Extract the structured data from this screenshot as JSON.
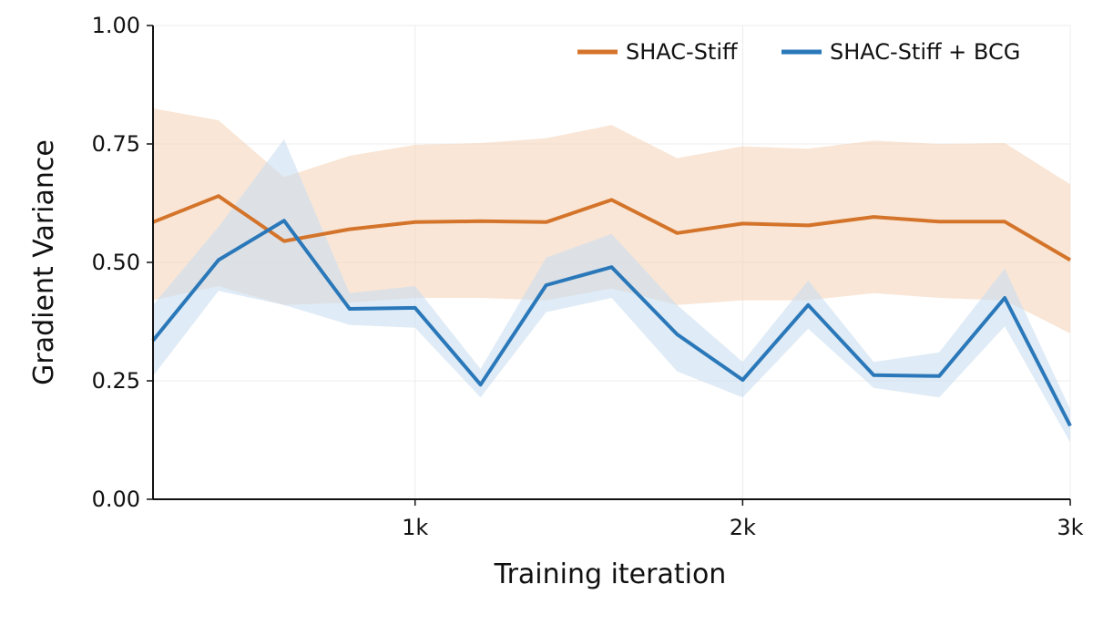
{
  "chart_data": {
    "type": "line",
    "title": "",
    "xlabel": "Training iteration",
    "ylabel": "Gradient Variance",
    "xlim": [
      200,
      3000
    ],
    "ylim": [
      0,
      1
    ],
    "x_ticks": [
      {
        "value": 1000,
        "label": "1k"
      },
      {
        "value": 2000,
        "label": "2k"
      },
      {
        "value": 3000,
        "label": "3k"
      }
    ],
    "y_ticks": [
      {
        "value": 0.0,
        "label": "0.00"
      },
      {
        "value": 0.25,
        "label": "0.25"
      },
      {
        "value": 0.5,
        "label": "0.50"
      },
      {
        "value": 0.75,
        "label": "0.75"
      },
      {
        "value": 1.0,
        "label": "1.00"
      }
    ],
    "grid": true,
    "legend_position": "top-right",
    "x": [
      200,
      400,
      600,
      800,
      1000,
      1200,
      1400,
      1600,
      1800,
      2000,
      2200,
      2400,
      2600,
      2800,
      3000
    ],
    "series": [
      {
        "name": "SHAC-Stiff",
        "color": "#d4742a",
        "band_color": "#f5d5bb",
        "values": [
          0.585,
          0.64,
          0.545,
          0.57,
          0.585,
          0.587,
          0.585,
          0.632,
          0.562,
          0.582,
          0.578,
          0.596,
          0.586,
          0.586,
          0.505
        ],
        "lower": [
          0.42,
          0.45,
          0.41,
          0.415,
          0.425,
          0.425,
          0.42,
          0.445,
          0.41,
          0.42,
          0.42,
          0.435,
          0.425,
          0.42,
          0.35
        ],
        "upper": [
          0.825,
          0.8,
          0.68,
          0.725,
          0.748,
          0.752,
          0.762,
          0.79,
          0.72,
          0.745,
          0.74,
          0.757,
          0.75,
          0.752,
          0.665
        ]
      },
      {
        "name": "SHAC-Stiff + BCG",
        "color": "#2a78b9",
        "band_color": "#c9def0",
        "values": [
          0.335,
          0.505,
          0.588,
          0.402,
          0.404,
          0.242,
          0.452,
          0.49,
          0.348,
          0.252,
          0.41,
          0.262,
          0.26,
          0.425,
          0.155
        ],
        "lower": [
          0.26,
          0.44,
          0.41,
          0.368,
          0.362,
          0.215,
          0.395,
          0.425,
          0.27,
          0.215,
          0.36,
          0.235,
          0.215,
          0.365,
          0.12
        ],
        "upper": [
          0.41,
          0.575,
          0.76,
          0.435,
          0.45,
          0.275,
          0.51,
          0.56,
          0.41,
          0.29,
          0.462,
          0.29,
          0.31,
          0.487,
          0.19
        ]
      }
    ]
  }
}
